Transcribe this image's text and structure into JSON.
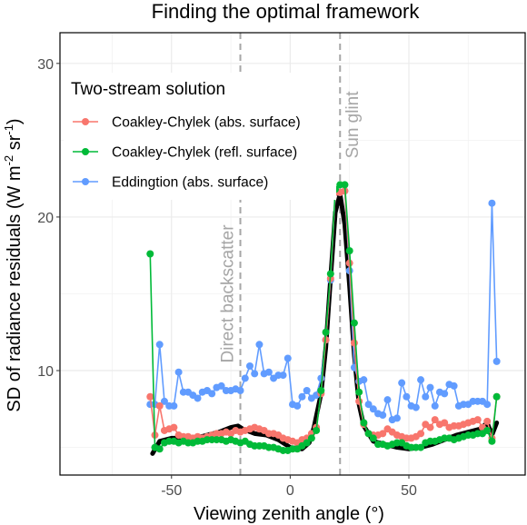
{
  "chart_data": {
    "type": "line",
    "title": "Finding the optimal framework",
    "xlabel": "Viewing zenith angle (°)",
    "ylabel_main": "SD of radiance residuals (W m",
    "ylabel_sup1": "-2",
    "ylabel_mid": " sr",
    "ylabel_sup2": "-1",
    "ylabel_end": ")",
    "xlim": [
      -97,
      99
    ],
    "ylim": [
      3.2,
      32
    ],
    "xticks": [
      -50,
      0,
      50
    ],
    "xtick_labels": [
      "-50",
      "0",
      "50"
    ],
    "yticks": [
      10,
      20,
      30
    ],
    "ytick_labels": [
      "10",
      "20",
      "30"
    ],
    "grid": true,
    "legend": {
      "title": "Two-stream solution",
      "position": "top-left"
    },
    "annotations": [
      {
        "text": "Direct backscatter",
        "x": -21
      },
      {
        "text": "Sun glint",
        "x": 21
      }
    ],
    "colors": {
      "coakley_abs": "#F8766D",
      "coakley_refl": "#00BA38",
      "eddington": "#619CFF",
      "reference": "#000000",
      "vline": "#a6a6a6"
    },
    "reference_line": {
      "x": [
        -58,
        -55,
        -50,
        -45,
        -40,
        -35,
        -30,
        -25,
        -22,
        -20,
        -15,
        -10,
        -5,
        0,
        5,
        8,
        10,
        13,
        15,
        17,
        19,
        21,
        23,
        25,
        27,
        29,
        31,
        35,
        40,
        45,
        50,
        55,
        60,
        65,
        70,
        75,
        80,
        83,
        85,
        87
      ],
      "y": [
        4.6,
        5.4,
        5.6,
        5.6,
        5.6,
        5.8,
        6.0,
        6.3,
        6.4,
        6.2,
        5.9,
        5.8,
        5.5,
        5.0,
        4.9,
        5.3,
        6.3,
        8.5,
        11.5,
        16.0,
        20.3,
        21.5,
        19.5,
        15.5,
        11.0,
        7.8,
        6.4,
        5.4,
        5.2,
        5.0,
        4.9,
        5.0,
        5.2,
        5.5,
        5.8,
        6.0,
        6.2,
        6.6,
        5.8,
        6.6
      ]
    },
    "series": [
      {
        "name": "Coakley-Chylek (abs. surface)",
        "color_key": "coakley_abs",
        "x": [
          -59,
          -57,
          -55,
          -53,
          -51,
          -49,
          -47,
          -45,
          -43,
          -41,
          -39,
          -37,
          -35,
          -33,
          -31,
          -29,
          -27,
          -25,
          -23,
          -21,
          -19,
          -17,
          -15,
          -13,
          -11,
          -9,
          -7,
          -5,
          -3,
          -1,
          1,
          3,
          5,
          7,
          9,
          11,
          13,
          15,
          17,
          19,
          21,
          23,
          25,
          27,
          29,
          31,
          33,
          35,
          37,
          39,
          41,
          43,
          45,
          47,
          49,
          51,
          53,
          55,
          57,
          59,
          61,
          63,
          65,
          67,
          69,
          71,
          73,
          75,
          77,
          79,
          81,
          83,
          85,
          87
        ],
        "y": [
          8.3,
          5.8,
          7.7,
          6.1,
          6.2,
          6.3,
          5.8,
          5.7,
          5.7,
          5.6,
          5.7,
          5.6,
          5.7,
          5.8,
          5.9,
          5.9,
          6.0,
          5.9,
          6.1,
          6.0,
          6.1,
          6.2,
          6.3,
          6.2,
          6.1,
          5.9,
          5.9,
          5.8,
          5.6,
          5.5,
          5.4,
          5.3,
          5.5,
          5.6,
          5.9,
          6.3,
          8.5,
          12.0,
          16.0,
          21.6,
          21.6,
          21.7,
          17.0,
          11.8,
          8.0,
          6.5,
          5.9,
          5.8,
          5.8,
          5.9,
          6.2,
          6.0,
          5.8,
          5.7,
          5.6,
          5.6,
          5.7,
          5.9,
          6.5,
          6.3,
          6.8,
          6.5,
          6.6,
          6.3,
          6.4,
          6.4,
          6.5,
          6.6,
          6.7,
          6.8,
          6.3,
          6.7,
          5.6,
          8.3
        ]
      },
      {
        "name": "Coakley-Chylek (refl. surface)",
        "color_key": "coakley_refl",
        "x": [
          -59,
          -57,
          -55,
          -53,
          -51,
          -49,
          -47,
          -45,
          -43,
          -41,
          -39,
          -37,
          -35,
          -33,
          -31,
          -29,
          -27,
          -25,
          -23,
          -21,
          -19,
          -17,
          -15,
          -13,
          -11,
          -9,
          -7,
          -5,
          -3,
          -1,
          1,
          3,
          5,
          7,
          9,
          11,
          13,
          15,
          17,
          19,
          21,
          23,
          25,
          27,
          29,
          31,
          33,
          35,
          37,
          39,
          41,
          43,
          45,
          47,
          49,
          51,
          53,
          55,
          57,
          59,
          61,
          63,
          65,
          67,
          69,
          71,
          73,
          75,
          77,
          79,
          81,
          83,
          85,
          87
        ],
        "y": [
          17.6,
          5.0,
          4.9,
          5.3,
          5.4,
          5.4,
          5.3,
          5.4,
          5.3,
          5.3,
          5.4,
          5.4,
          5.5,
          5.5,
          5.5,
          5.5,
          5.4,
          5.5,
          5.4,
          5.3,
          5.4,
          5.2,
          5.1,
          5.1,
          5.1,
          5.0,
          5.0,
          4.9,
          4.8,
          4.8,
          4.9,
          4.9,
          5.1,
          5.3,
          5.6,
          6.1,
          8.7,
          12.5,
          16.3,
          21.8,
          22.1,
          22.1,
          17.8,
          13.1,
          8.6,
          6.6,
          5.9,
          5.6,
          5.2,
          5.2,
          5.1,
          5.2,
          5.3,
          5.3,
          5.1,
          5.0,
          5.0,
          5.0,
          5.3,
          5.4,
          5.4,
          5.5,
          5.6,
          5.6,
          5.5,
          5.6,
          5.7,
          5.8,
          5.8,
          5.9,
          5.9,
          6.1,
          5.4,
          8.3
        ]
      },
      {
        "name": "Eddingtion (abs. surface)",
        "color_key": "eddington",
        "x": [
          -59,
          -57,
          -55,
          -53,
          -51,
          -49,
          -47,
          -45,
          -43,
          -41,
          -39,
          -37,
          -35,
          -33,
          -31,
          -29,
          -27,
          -25,
          -23,
          -21,
          -19,
          -17,
          -15,
          -13,
          -11,
          -9,
          -7,
          -5,
          -3,
          -1,
          1,
          3,
          5,
          7,
          9,
          11,
          13,
          15,
          17,
          19,
          21,
          23,
          25,
          27,
          29,
          31,
          33,
          35,
          37,
          39,
          41,
          43,
          45,
          47,
          49,
          51,
          53,
          55,
          57,
          59,
          61,
          63,
          65,
          67,
          69,
          71,
          73,
          75,
          77,
          79,
          81,
          83,
          85,
          87
        ],
        "y": [
          7.8,
          7.8,
          11.7,
          8.0,
          7.7,
          7.7,
          9.9,
          8.6,
          8.6,
          8.4,
          8.2,
          8.6,
          8.7,
          8.5,
          8.9,
          9.0,
          8.7,
          8.7,
          8.8,
          8.7,
          9.5,
          10.3,
          9.8,
          11.7,
          9.8,
          9.9,
          9.5,
          9.7,
          9.7,
          10.8,
          7.8,
          7.7,
          8.3,
          8.7,
          8.2,
          8.4,
          9.5,
          12.0,
          15.9,
          21.6,
          21.6,
          21.7,
          16.5,
          10.2,
          9.3,
          9.4,
          7.8,
          7.5,
          7.2,
          7.1,
          8.1,
          6.8,
          6.9,
          9.2,
          8.3,
          7.7,
          7.6,
          9.4,
          8.3,
          8.9,
          7.7,
          8.6,
          8.5,
          9.1,
          9.0,
          7.7,
          7.8,
          7.8,
          8.0,
          8.0,
          8.0,
          7.8,
          20.9,
          10.6
        ]
      }
    ]
  }
}
